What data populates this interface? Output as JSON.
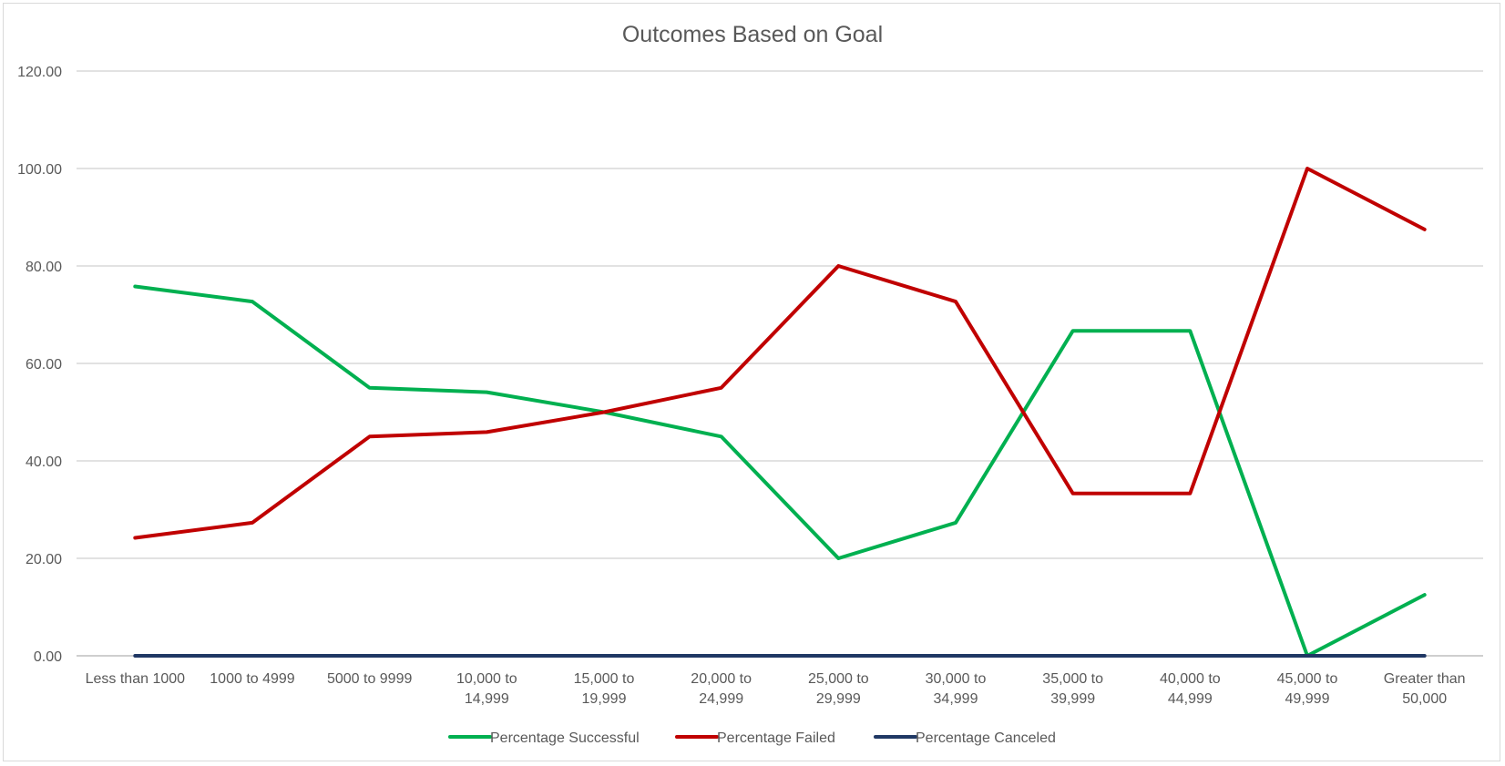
{
  "chart_data": {
    "type": "line",
    "title": "Outcomes Based on Goal",
    "xlabel": "",
    "ylabel": "",
    "ylim": [
      0,
      120
    ],
    "yticks": [
      "0.00",
      "20.00",
      "40.00",
      "60.00",
      "80.00",
      "100.00",
      "120.00"
    ],
    "ytick_values": [
      0,
      20,
      40,
      60,
      80,
      100,
      120
    ],
    "grid": true,
    "legend_position": "bottom",
    "categories": [
      [
        "Less than 1000"
      ],
      [
        "1000 to 4999"
      ],
      [
        "5000 to 9999"
      ],
      [
        "10,000 to",
        "14,999"
      ],
      [
        "15,000 to",
        "19,999"
      ],
      [
        "20,000 to",
        "24,999"
      ],
      [
        "25,000 to",
        "29,999"
      ],
      [
        "30,000 to",
        "34,999"
      ],
      [
        "35,000 to",
        "39,999"
      ],
      [
        "40,000 to",
        "44,999"
      ],
      [
        "45,000 to",
        "49,999"
      ],
      [
        "Greater than",
        "50,000"
      ]
    ],
    "series": [
      {
        "name": "Percentage Successful",
        "color": "#00b050",
        "values": [
          75.8,
          72.7,
          55.0,
          54.1,
          50.0,
          45.0,
          20.0,
          27.3,
          66.7,
          66.7,
          0.0,
          12.5
        ]
      },
      {
        "name": "Percentage Failed",
        "color": "#c00000",
        "values": [
          24.2,
          27.3,
          45.0,
          45.9,
          50.0,
          55.0,
          80.0,
          72.7,
          33.3,
          33.3,
          100.0,
          87.5
        ]
      },
      {
        "name": "Percentage Canceled",
        "color": "#203864",
        "values": [
          0,
          0,
          0,
          0,
          0,
          0,
          0,
          0,
          0,
          0,
          0,
          0
        ]
      }
    ]
  }
}
